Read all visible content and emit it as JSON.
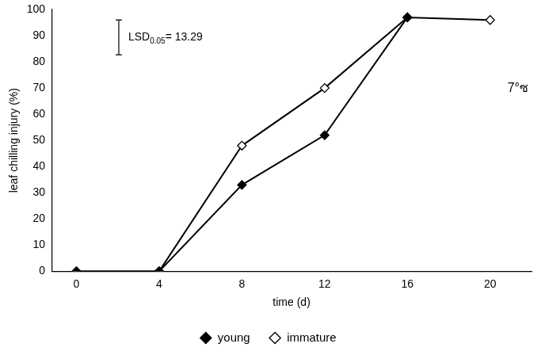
{
  "chart_data": {
    "type": "line",
    "x": [
      0,
      4,
      8,
      12,
      16,
      20
    ],
    "series": [
      {
        "name": "young",
        "color": "#000000",
        "marker": "diamond",
        "values": [
          0,
          0,
          33,
          52,
          97,
          null
        ]
      },
      {
        "name": "immature",
        "color": "#000000",
        "marker": "open_diamond",
        "values": [
          0,
          0,
          48,
          70,
          97,
          96
        ]
      }
    ],
    "x_label": "time (d)",
    "y_label": "leaf chilling injury (%)",
    "xlim": [
      -1.2,
      22
    ],
    "xticks": [
      0,
      4,
      8,
      12,
      16,
      20
    ],
    "ylim": [
      0,
      100
    ],
    "yticks": [
      0,
      10,
      20,
      30,
      40,
      50,
      60,
      70,
      80,
      90,
      100
    ],
    "grid": false,
    "legend": "bottom",
    "annotations": [
      {
        "text": "7°ซ"
      }
    ],
    "lsd": {
      "text": "LSD0.05= 13.29",
      "subscript": "0.05",
      "value": 13.29
    }
  }
}
